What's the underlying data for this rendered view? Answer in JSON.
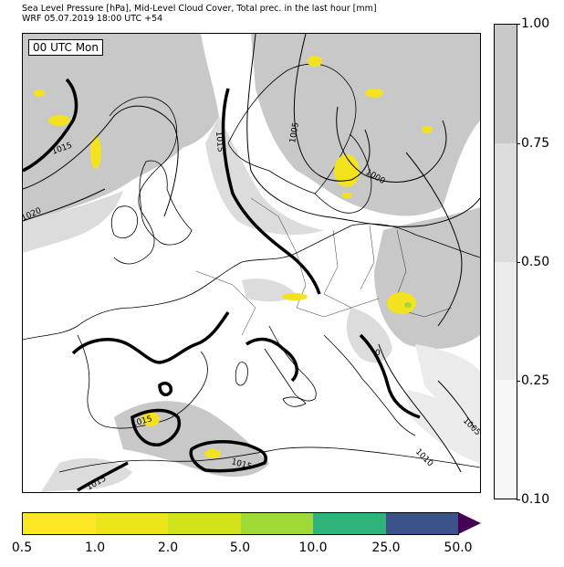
{
  "header": {
    "title_line1": "Sea Level Pressure [hPa], Mid-Level Cloud Cover, Total prec. in the last hour [mm]",
    "title_line2": "WRF 05.07.2019 18:00 UTC +54"
  },
  "map": {
    "time_label": "00 UTC Mon",
    "isobar_labels": [
      "1015",
      "1020",
      "1015",
      "1005",
      "1000",
      "1015",
      "1015",
      "1015",
      "1010",
      "1005",
      "0"
    ],
    "colors": {
      "cloud_full": "#c8c8c8",
      "cloud_mid": "#dcdcdc",
      "cloud_light": "#ebebeb",
      "coast": "#000000",
      "precip_light": "#f3e21f",
      "precip_mid": "#a7d63a"
    }
  },
  "cloud_cover_colorbar": {
    "ticks": [
      "1.00",
      "0.75",
      "0.50",
      "0.25",
      "0.10"
    ],
    "colors": [
      "#c8c8c8",
      "#dcdcdc",
      "#ebebeb",
      "#f7f7f7"
    ]
  },
  "precip_colorbar": {
    "ticks": [
      "0.5",
      "1.0",
      "2.0",
      "5.0",
      "10.0",
      "25.0",
      "50.0"
    ],
    "colors": [
      "#fde725",
      "#ece51b",
      "#d2e21b",
      "#a0da39",
      "#2fb47c",
      "#3b528b",
      "#440154"
    ]
  }
}
